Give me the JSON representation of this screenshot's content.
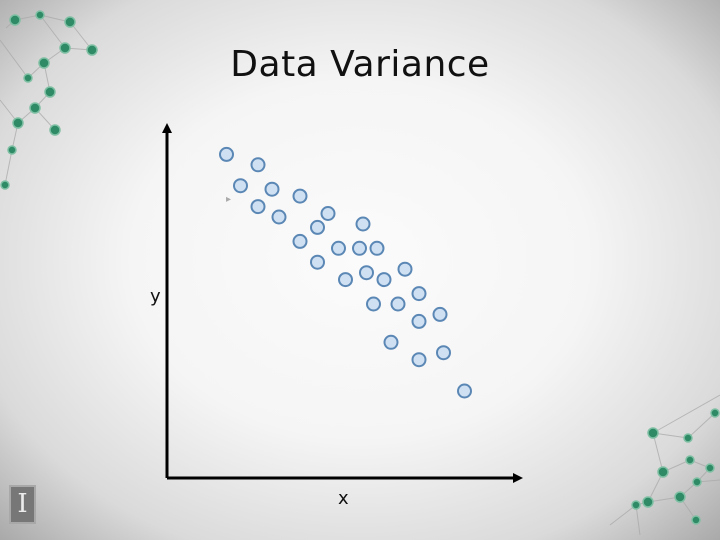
{
  "slide": {
    "title": "Data Variance",
    "logo": "I"
  },
  "colors": {
    "point_fill": "#cfe0f3",
    "point_stroke": "#5b87b5",
    "axis": "#000000",
    "network_node": "#2e8b66",
    "network_line": "#a9a9a9"
  },
  "chart_data": {
    "type": "scatter",
    "title": "Data Variance",
    "xlabel": "x",
    "ylabel": "y",
    "xlim": [
      0,
      100
    ],
    "ylim": [
      0,
      100
    ],
    "grid": false,
    "legend": "none",
    "axis_ticks": "none",
    "points": [
      {
        "x": 17,
        "y": 93
      },
      {
        "x": 26,
        "y": 90
      },
      {
        "x": 21,
        "y": 84
      },
      {
        "x": 26,
        "y": 78
      },
      {
        "x": 30,
        "y": 83
      },
      {
        "x": 32,
        "y": 75
      },
      {
        "x": 38,
        "y": 81
      },
      {
        "x": 43,
        "y": 72
      },
      {
        "x": 46,
        "y": 76
      },
      {
        "x": 38,
        "y": 68
      },
      {
        "x": 43,
        "y": 62
      },
      {
        "x": 49,
        "y": 66
      },
      {
        "x": 55,
        "y": 66
      },
      {
        "x": 56,
        "y": 73
      },
      {
        "x": 60,
        "y": 66
      },
      {
        "x": 51,
        "y": 57
      },
      {
        "x": 57,
        "y": 59
      },
      {
        "x": 62,
        "y": 57
      },
      {
        "x": 68,
        "y": 60
      },
      {
        "x": 59,
        "y": 50
      },
      {
        "x": 66,
        "y": 50
      },
      {
        "x": 72,
        "y": 53
      },
      {
        "x": 72,
        "y": 45
      },
      {
        "x": 78,
        "y": 47
      },
      {
        "x": 64,
        "y": 39
      },
      {
        "x": 72,
        "y": 34
      },
      {
        "x": 79,
        "y": 36
      },
      {
        "x": 85,
        "y": 25
      }
    ]
  }
}
